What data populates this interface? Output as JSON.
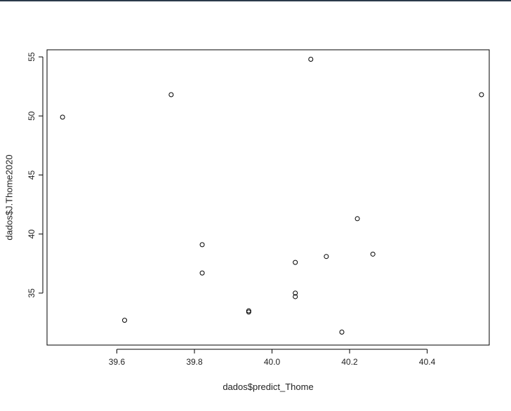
{
  "chart_data": {
    "type": "scatter",
    "title": "",
    "xlabel": "dados$predict_Thome",
    "ylabel": "dados$J.Thome2020",
    "xlim": [
      39.42,
      40.56
    ],
    "ylim": [
      30.6,
      55.6
    ],
    "x_ticks": [
      39.6,
      39.8,
      40.0,
      40.2,
      40.4
    ],
    "x_tick_labels": [
      "39.6",
      "39.8",
      "40.0",
      "40.2",
      "40.4"
    ],
    "y_ticks": [
      35,
      40,
      45,
      50,
      55
    ],
    "y_tick_labels": [
      "35",
      "40",
      "45",
      "50",
      "55"
    ],
    "grid": false,
    "legend": "none",
    "marker": "open-circle",
    "points": [
      {
        "x": 39.46,
        "y": 49.9
      },
      {
        "x": 39.62,
        "y": 32.7
      },
      {
        "x": 39.74,
        "y": 51.8
      },
      {
        "x": 39.82,
        "y": 39.1
      },
      {
        "x": 39.82,
        "y": 36.7
      },
      {
        "x": 39.94,
        "y": 33.5
      },
      {
        "x": 39.94,
        "y": 33.4
      },
      {
        "x": 40.06,
        "y": 37.6
      },
      {
        "x": 40.06,
        "y": 35.0
      },
      {
        "x": 40.06,
        "y": 34.7
      },
      {
        "x": 40.1,
        "y": 54.8
      },
      {
        "x": 40.14,
        "y": 38.1
      },
      {
        "x": 40.18,
        "y": 31.7
      },
      {
        "x": 40.22,
        "y": 41.3
      },
      {
        "x": 40.26,
        "y": 38.3
      },
      {
        "x": 40.54,
        "y": 51.8
      }
    ],
    "colors": {
      "axis": "#000000",
      "marker_stroke": "#000000",
      "text": "#222222",
      "top_rule": "#2b3a4a"
    }
  }
}
